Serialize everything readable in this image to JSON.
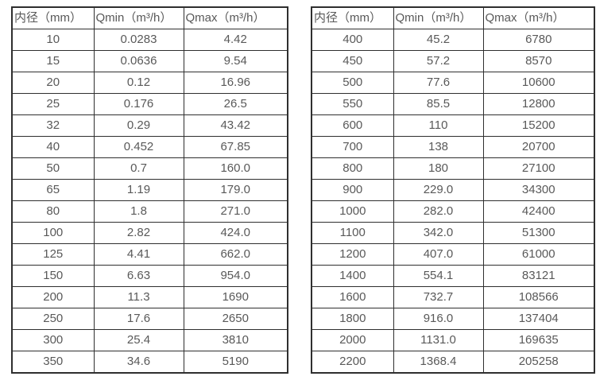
{
  "tables": [
    {
      "name": "flow-range-table-small-diameters",
      "headers": [
        "内径（mm）",
        "Qmin（m³/h）",
        "Qmax（m³/h）"
      ],
      "rows": [
        [
          "10",
          "0.0283",
          "4.42"
        ],
        [
          "15",
          "0.0636",
          "9.54"
        ],
        [
          "20",
          "0.12",
          "16.96"
        ],
        [
          "25",
          "0.176",
          "26.5"
        ],
        [
          "32",
          "0.29",
          "43.42"
        ],
        [
          "40",
          "0.452",
          "67.85"
        ],
        [
          "50",
          "0.7",
          "160.0"
        ],
        [
          "65",
          "1.19",
          "179.0"
        ],
        [
          "80",
          "1.8",
          "271.0"
        ],
        [
          "100",
          "2.82",
          "424.0"
        ],
        [
          "125",
          "4.41",
          "662.0"
        ],
        [
          "150",
          "6.63",
          "954.0"
        ],
        [
          "200",
          "11.3",
          "1690"
        ],
        [
          "250",
          "17.6",
          "2650"
        ],
        [
          "300",
          "25.4",
          "3810"
        ],
        [
          "350",
          "34.6",
          "5190"
        ]
      ]
    },
    {
      "name": "flow-range-table-large-diameters",
      "headers": [
        "内径（mm）",
        "Qmin（m³/h）",
        "Qmax（m³/h）"
      ],
      "rows": [
        [
          "400",
          "45.2",
          "6780"
        ],
        [
          "450",
          "57.2",
          "8570"
        ],
        [
          "500",
          "77.6",
          "10600"
        ],
        [
          "550",
          "85.5",
          "12800"
        ],
        [
          "600",
          "110",
          "15200"
        ],
        [
          "700",
          "138",
          "20700"
        ],
        [
          "800",
          "180",
          "27100"
        ],
        [
          "900",
          "229.0",
          "34300"
        ],
        [
          "1000",
          "282.0",
          "42400"
        ],
        [
          "1100",
          "342.0",
          "51300"
        ],
        [
          "1200",
          "407.0",
          "61000"
        ],
        [
          "1400",
          "554.1",
          "83121"
        ],
        [
          "1600",
          "732.7",
          "108566"
        ],
        [
          "1800",
          "916.0",
          "137404"
        ],
        [
          "2000",
          "1131.0",
          "169635"
        ],
        [
          "2200",
          "1368.4",
          "205258"
        ]
      ]
    }
  ],
  "colors": {
    "text": "#595959",
    "border": "#2f2f2f",
    "background": "#ffffff"
  }
}
